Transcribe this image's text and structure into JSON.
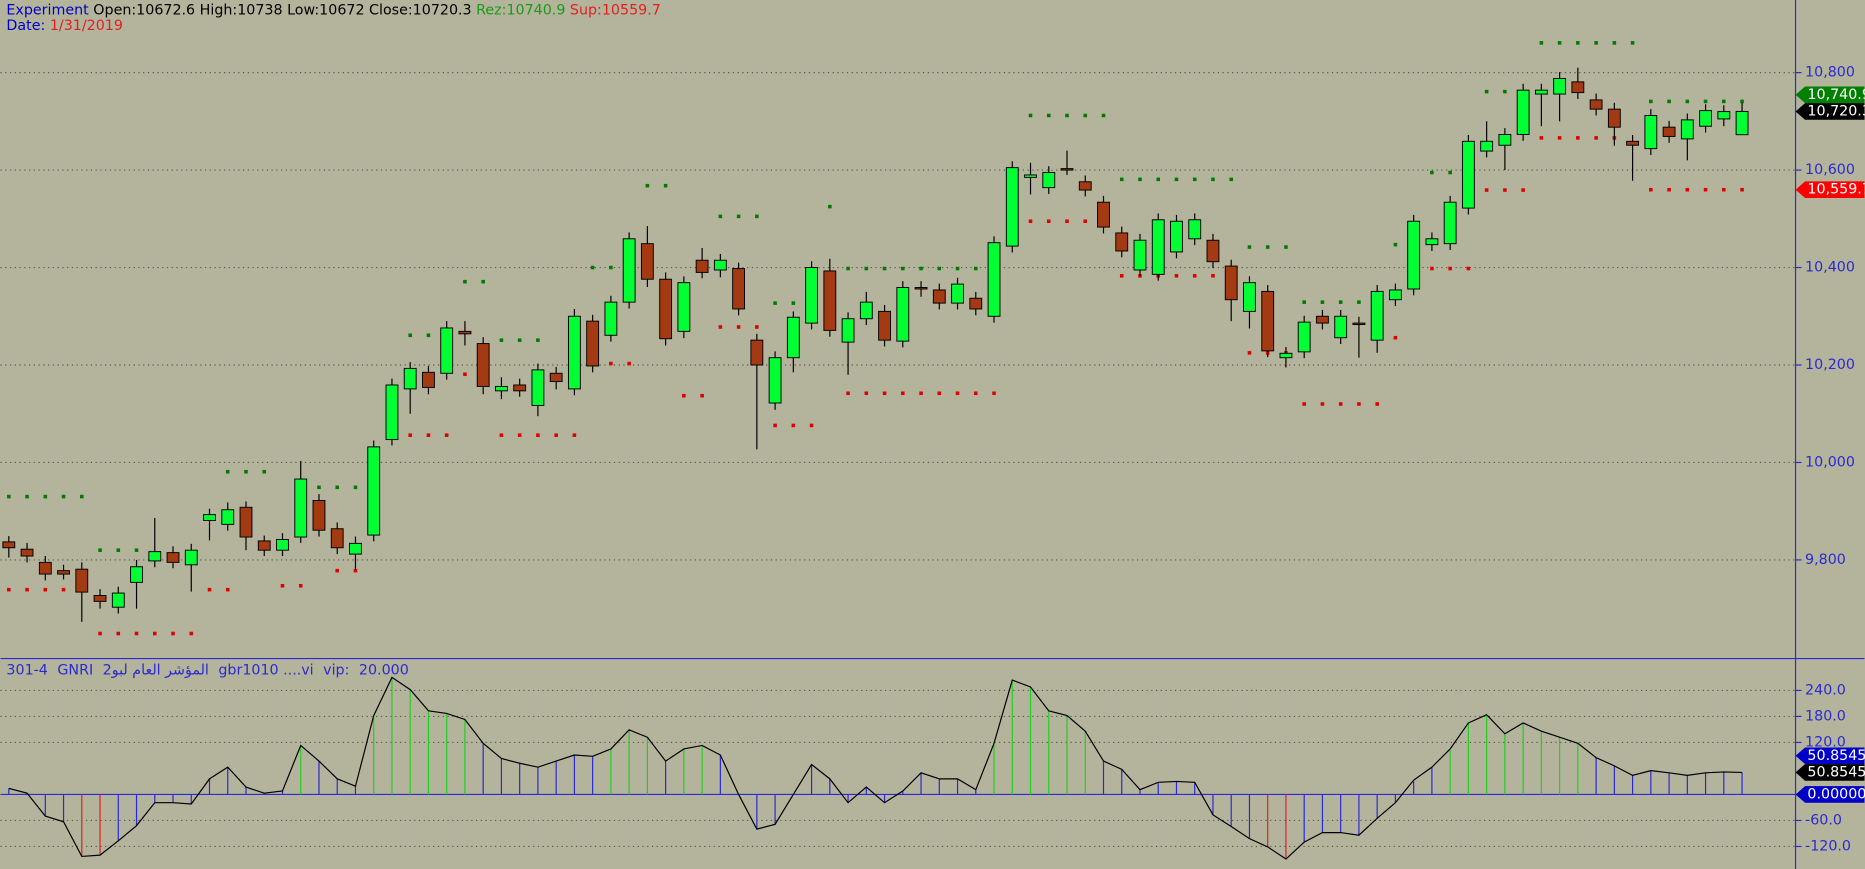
{
  "chart_data": [
    {
      "type": "candlestick",
      "title": "Experiment",
      "field_labels": [
        "Open:",
        "High:",
        "Low:",
        "Close:",
        "Rez:",
        "Sup:"
      ],
      "date_label": "Date:",
      "date": "1/31/2019",
      "up_color": "#00ff33",
      "down_color": "#a33a12",
      "open": [
        9837,
        9822,
        9795,
        9778,
        9781,
        9727,
        9703,
        9754,
        9798,
        9815,
        9790,
        9881,
        9873,
        9908,
        9839,
        9820,
        9847,
        9922,
        9864,
        9812,
        9851,
        10047,
        10151,
        10185,
        10183,
        10269,
        10244,
        10147,
        10159,
        10117,
        10183,
        10151,
        10290,
        10261,
        10329,
        10449,
        10376,
        10269,
        10415,
        10395,
        10398,
        10251,
        10122,
        10215,
        10286,
        10393,
        10247,
        10295,
        10310,
        10249,
        10359,
        10354,
        10327,
        10337,
        10300,
        10444,
        10585,
        10564,
        10603,
        10576,
        10534,
        10471,
        10395,
        10386,
        10432,
        10459,
        10456,
        10403,
        10310,
        10351,
        10215,
        10227,
        10300,
        10256,
        10286,
        10251,
        10334,
        10356,
        10447,
        10449,
        10522,
        10639,
        10651,
        10673,
        10756,
        10756,
        10781,
        10744,
        10725,
        10659,
        10644,
        10688,
        10664,
        10690,
        10705,
        10672.6
      ],
      "high": [
        9849,
        9835,
        9808,
        9790,
        9795,
        9740,
        9745,
        9800,
        9886,
        9828,
        9833,
        9905,
        9918,
        9920,
        9850,
        9855,
        10003,
        9935,
        9877,
        9848,
        10045,
        10172,
        10206,
        10198,
        10290,
        10290,
        10257,
        10175,
        10172,
        10203,
        10196,
        10315,
        10303,
        10342,
        10472,
        10485,
        10390,
        10382,
        10440,
        10428,
        10410,
        10264,
        10228,
        10310,
        10413,
        10418,
        10308,
        10350,
        10323,
        10372,
        10372,
        10367,
        10379,
        10350,
        10464,
        10618,
        10615,
        10608,
        10640,
        10589,
        10547,
        10484,
        10469,
        10511,
        10508,
        10511,
        10469,
        10416,
        10382,
        10364,
        10237,
        10301,
        10313,
        10313,
        10299,
        10364,
        10367,
        10508,
        10472,
        10547,
        10672,
        10700,
        10686,
        10777,
        10777,
        10801,
        10810,
        10757,
        10738,
        10672,
        10725,
        10701,
        10716,
        10735,
        10733,
        10738
      ],
      "low": [
        9805,
        9795,
        9758,
        9760,
        9673,
        9700,
        9690,
        9700,
        9785,
        9783,
        9735,
        9840,
        9860,
        9820,
        9808,
        9808,
        9835,
        9848,
        9812,
        9780,
        9838,
        10035,
        10100,
        10140,
        10170,
        10240,
        10140,
        10130,
        10135,
        10095,
        10150,
        10138,
        10185,
        10248,
        10316,
        10360,
        10240,
        10255,
        10378,
        10380,
        10302,
        10027,
        10108,
        10185,
        10273,
        10258,
        10180,
        10282,
        10238,
        10236,
        10340,
        10314,
        10314,
        10302,
        10287,
        10431,
        10550,
        10551,
        10590,
        10546,
        10470,
        10421,
        10382,
        10373,
        10419,
        10446,
        10399,
        10290,
        10275,
        10216,
        10195,
        10214,
        10273,
        10243,
        10215,
        10225,
        10321,
        10343,
        10434,
        10436,
        10509,
        10626,
        10600,
        10660,
        10690,
        10700,
        10746,
        10712,
        10650,
        10578,
        10631,
        10656,
        10620,
        10677,
        10690,
        10672
      ],
      "close": [
        9825,
        9808,
        9771,
        9771,
        9734,
        9715,
        9732,
        9786,
        9817,
        9795,
        9820,
        9893,
        9903,
        9847,
        9820,
        9842,
        9966,
        9861,
        9825,
        9834,
        10032,
        10159,
        10193,
        10154,
        10276,
        10264,
        10156,
        10156,
        10147,
        10190,
        10166,
        10300,
        10198,
        10329,
        10459,
        10376,
        10254,
        10369,
        10390,
        10415,
        10315,
        10200,
        10215,
        10298,
        10400,
        10271,
        10295,
        10329,
        10251,
        10359,
        10356,
        10327,
        10366,
        10315,
        10451,
        10605,
        10590,
        10595,
        10600,
        10559,
        10483,
        10434,
        10456,
        10498,
        10495,
        10498,
        10412,
        10334,
        10369,
        10229,
        10224,
        10288,
        10286,
        10300,
        10283,
        10351,
        10354,
        10495,
        10459,
        10534,
        10659,
        10659,
        10673,
        10764,
        10764,
        10788,
        10759,
        10725,
        10688,
        10651,
        10712,
        10669,
        10703,
        10722,
        10720,
        10720.3
      ],
      "resistance": {
        "color": "#007a00",
        "values": [
          9930,
          9930,
          9930,
          9930,
          9930,
          9820,
          9820,
          9820,
          null,
          null,
          null,
          null,
          9981,
          9981,
          9981,
          null,
          9949,
          9949,
          9949,
          9949,
          null,
          null,
          10261,
          10261,
          10261,
          10371,
          10371,
          10251,
          10251,
          10251,
          null,
          null,
          10400,
          10400,
          10400,
          10568,
          10568,
          null,
          null,
          10505,
          10505,
          10505,
          10327,
          10327,
          null,
          10525,
          10398,
          10398,
          10398,
          10398,
          10398,
          10398,
          10398,
          10398,
          null,
          null,
          10712,
          10712,
          10712,
          10712,
          10712,
          10581,
          10581,
          10581,
          10581,
          10581,
          10581,
          10581,
          10442,
          10442,
          10442,
          10329,
          10329,
          10329,
          10329,
          null,
          10447,
          null,
          10595,
          10595,
          null,
          10761,
          10761,
          null,
          10861,
          10861,
          10861,
          10861,
          10861,
          10861,
          10740.9,
          10740.9,
          10740.9,
          10740.9,
          10740.9,
          10740.9
        ]
      },
      "support": {
        "color": "#e00000",
        "values": [
          9739,
          9739,
          9739,
          9739,
          null,
          9649,
          9649,
          9649,
          9649,
          9649,
          9649,
          9739,
          9739,
          null,
          null,
          9747,
          9747,
          null,
          9778,
          9778,
          null,
          10056,
          10056,
          10056,
          10056,
          10181,
          null,
          10056,
          10056,
          10056,
          10056,
          10056,
          null,
          10203,
          10203,
          null,
          null,
          10137,
          10137,
          10278,
          10278,
          10278,
          10076,
          10076,
          10076,
          null,
          10142,
          10142,
          10142,
          10142,
          10142,
          10142,
          10142,
          10142,
          10142,
          null,
          10495,
          10495,
          10495,
          10495,
          null,
          10383,
          10383,
          10383,
          10383,
          10383,
          10383,
          10383,
          10225,
          10225,
          10225,
          10120,
          10120,
          10120,
          10120,
          10120,
          10256,
          null,
          10398,
          10398,
          10398,
          10559,
          10559,
          10559,
          10666,
          10666,
          10666,
          10666,
          10666,
          null,
          10559.7,
          10559.7,
          10559.7,
          10559.7,
          10559.7,
          10559.7
        ]
      },
      "price_markers": [
        {
          "value": 10740.9,
          "label": "10,740.9",
          "color": "#008000"
        },
        {
          "value": 10720.3,
          "label": "10,720.3",
          "color": "#000000"
        },
        {
          "value": 10559.7,
          "label": "10,559.7",
          "color": "#ff0000"
        }
      ],
      "ylim": [
        9600,
        10949
      ],
      "yticks": [
        {
          "value": 10800,
          "label": "10,800"
        },
        {
          "value": 10600,
          "label": "10,600"
        },
        {
          "value": 10400,
          "label": "10,400"
        },
        {
          "value": 10200,
          "label": "10,200"
        },
        {
          "value": 10000,
          "label": "10,000"
        },
        {
          "value": 9800,
          "label": "9,800"
        }
      ],
      "grid": true
    },
    {
      "type": "oscillator",
      "title": [
        "301-4",
        "GNRI",
        "المؤشر العام لبو2",
        "gbr1010 ....vi",
        "vip:",
        "20.000"
      ],
      "line_color": "#000000",
      "values": [
        14,
        3,
        -50,
        -63,
        -143,
        -140,
        -107,
        -72,
        -19,
        -19,
        -22,
        36,
        63,
        17,
        3,
        8,
        113,
        77,
        36,
        19,
        182,
        270,
        242,
        193,
        187,
        173,
        118,
        83,
        72,
        63,
        77,
        91,
        88,
        105,
        149,
        132,
        77,
        105,
        113,
        91,
        0,
        -80,
        -69,
        0,
        69,
        36,
        -19,
        17,
        -19,
        8,
        50,
        36,
        36,
        11,
        118,
        264,
        248,
        193,
        182,
        146,
        77,
        58,
        11,
        28,
        30,
        28,
        -47,
        -74,
        -102,
        -121,
        -149,
        -110,
        -88,
        -88,
        -94,
        -55,
        -19,
        33,
        63,
        105,
        165,
        184,
        140,
        165,
        146,
        132,
        118,
        85,
        66,
        44,
        55,
        50,
        44,
        50,
        52,
        50.8545
      ],
      "bar_colors": [
        "#2828d8",
        "#2828d8",
        "#2828d8",
        "#2828d8",
        "#e02020",
        "#e02020",
        "#2828d8",
        "#2828d8",
        "#2828d8",
        "#2828d8",
        "#2828d8",
        "#2828d8",
        "#2828d8",
        "#2828d8",
        "#2828d8",
        "#2828d8",
        "#20d020",
        "#2828d8",
        "#2828d8",
        "#2828d8",
        "#20d020",
        "#20d020",
        "#20d020",
        "#20d020",
        "#20d020",
        "#20d020",
        "#2828d8",
        "#2828d8",
        "#2828d8",
        "#2828d8",
        "#2828d8",
        "#2828d8",
        "#2828d8",
        "#20d020",
        "#20d020",
        "#20d020",
        "#2828d8",
        "#20d020",
        "#20d020",
        "#2828d8",
        "#2828d8",
        "#2828d8",
        "#2828d8",
        "#2828d8",
        "#2828d8",
        "#2828d8",
        "#2828d8",
        "#2828d8",
        "#2828d8",
        "#2828d8",
        "#2828d8",
        "#2828d8",
        "#2828d8",
        "#2828d8",
        "#20d020",
        "#20d020",
        "#20d020",
        "#20d020",
        "#20d020",
        "#20d020",
        "#2828d8",
        "#2828d8",
        "#2828d8",
        "#2828d8",
        "#2828d8",
        "#2828d8",
        "#2828d8",
        "#2828d8",
        "#2828d8",
        "#e02020",
        "#e02020",
        "#2828d8",
        "#2828d8",
        "#2828d8",
        "#2828d8",
        "#2828d8",
        "#2828d8",
        "#2828d8",
        "#2828d8",
        "#20d020",
        "#20d020",
        "#20d020",
        "#20d020",
        "#20d020",
        "#20d020",
        "#20d020",
        "#20d020",
        "#2828d8",
        "#2828d8",
        "#2828d8",
        "#2828d8",
        "#2828d8",
        "#2828d8",
        "#2828d8",
        "#2828d8",
        "#2828d8"
      ],
      "value_markers": [
        {
          "value": 50.8545,
          "color": "#0000c8"
        },
        {
          "value": 50.8545,
          "color": "#000000"
        },
        {
          "value": 0,
          "label": "0.00000",
          "color": "#0000c8"
        }
      ],
      "ylim": [
        -172,
        308
      ],
      "yticks": [
        {
          "value": 240,
          "label": "240.0"
        },
        {
          "value": 180,
          "label": "180.0"
        },
        {
          "value": 120,
          "label": "120.0"
        },
        {
          "value": -60,
          "label": "-60.0"
        },
        {
          "value": -120,
          "label": "-120.0"
        }
      ],
      "grid": true
    }
  ]
}
